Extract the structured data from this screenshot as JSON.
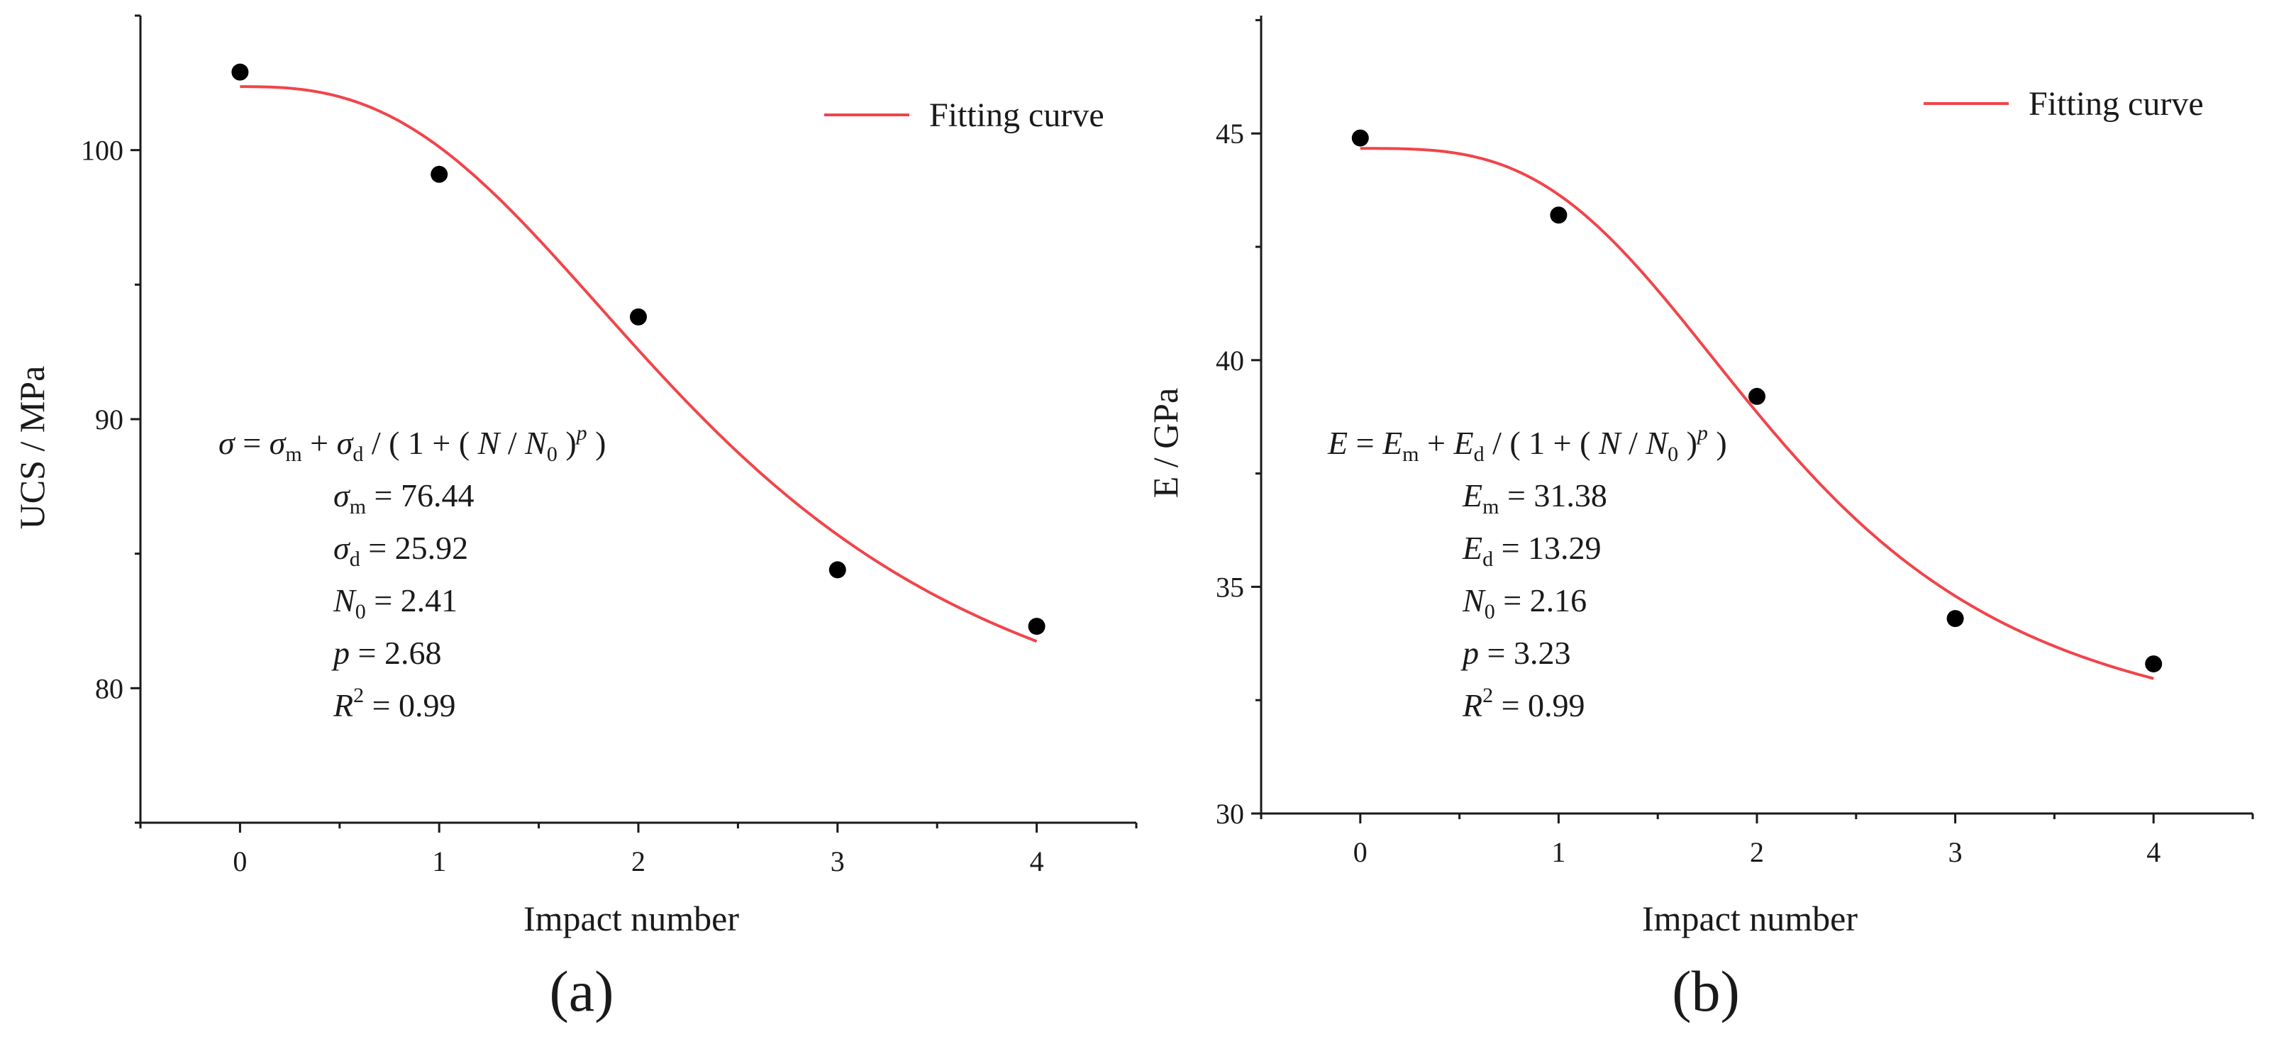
{
  "chart_data": [
    {
      "type": "scatter",
      "panel_label": "(a)",
      "xlabel": "Impact number",
      "ylabel": "UCS / MPa",
      "xlim": [
        -0.5,
        4.5
      ],
      "ylim": [
        75,
        105
      ],
      "x_ticks": [
        0,
        1,
        2,
        3,
        4
      ],
      "y_ticks": [
        80,
        90,
        100
      ],
      "legend": {
        "label": "Fitting curve",
        "color": "#f0454a",
        "position": "top-right"
      },
      "series": [
        {
          "type": "scatter",
          "marker_color": "#000000",
          "points": [
            {
              "x": 0,
              "y": 102.9
            },
            {
              "x": 1,
              "y": 99.1
            },
            {
              "x": 2,
              "y": 93.8
            },
            {
              "x": 3,
              "y": 84.4
            },
            {
              "x": 4,
              "y": 82.3
            }
          ]
        },
        {
          "type": "line",
          "name": "Fitting curve",
          "color": "#f0454a",
          "model": {
            "m": 76.44,
            "d": 25.92,
            "N0": 2.41,
            "p": 2.68
          },
          "x_range": [
            0,
            4
          ]
        }
      ],
      "equation": {
        "sym": "σ",
        "main": "= σm + σd / (1 + (N / N0)^p)",
        "params": [
          {
            "sym": "σ",
            "sub": "m",
            "text": " = 76.44"
          },
          {
            "sym": "σ",
            "sub": "d",
            "text": " = 25.92"
          },
          {
            "sym": "N",
            "sub": "0",
            "text": " = 2.41"
          },
          {
            "sym": "p",
            "sub": "",
            "text": " = 2.68"
          },
          {
            "sym": "R",
            "sup": "2",
            "text": " = 0.99"
          }
        ]
      }
    },
    {
      "type": "scatter",
      "panel_label": "(b)",
      "xlabel": "Impact number",
      "ylabel": "E / GPa",
      "xlim": [
        -0.5,
        4.5
      ],
      "ylim": [
        30,
        47.6
      ],
      "x_ticks": [
        0,
        1,
        2,
        3,
        4
      ],
      "y_ticks": [
        30,
        35,
        40,
        45
      ],
      "legend": {
        "label": "Fitting curve",
        "color": "#f0454a",
        "position": "top-right"
      },
      "series": [
        {
          "type": "scatter",
          "marker_color": "#000000",
          "points": [
            {
              "x": 0,
              "y": 44.9
            },
            {
              "x": 1,
              "y": 43.2
            },
            {
              "x": 2,
              "y": 39.2
            },
            {
              "x": 3,
              "y": 34.3
            },
            {
              "x": 4,
              "y": 33.3
            }
          ]
        },
        {
          "type": "line",
          "name": "Fitting curve",
          "color": "#f0454a",
          "model": {
            "m": 31.38,
            "d": 13.29,
            "N0": 2.16,
            "p": 3.23
          },
          "x_range": [
            0,
            4
          ]
        }
      ],
      "equation": {
        "sym": "E",
        "main": "= Em + Ed / (1 + (N / N0)^p)",
        "params": [
          {
            "sym": "E",
            "sub": "m",
            "text": " = 31.38"
          },
          {
            "sym": "E",
            "sub": "d",
            "text": " = 13.29"
          },
          {
            "sym": "N",
            "sub": "0",
            "text": " = 2.16"
          },
          {
            "sym": "p",
            "sub": "",
            "text": " = 3.23"
          },
          {
            "sym": "R",
            "sup": "2",
            "text": " = 0.99"
          }
        ]
      }
    }
  ]
}
